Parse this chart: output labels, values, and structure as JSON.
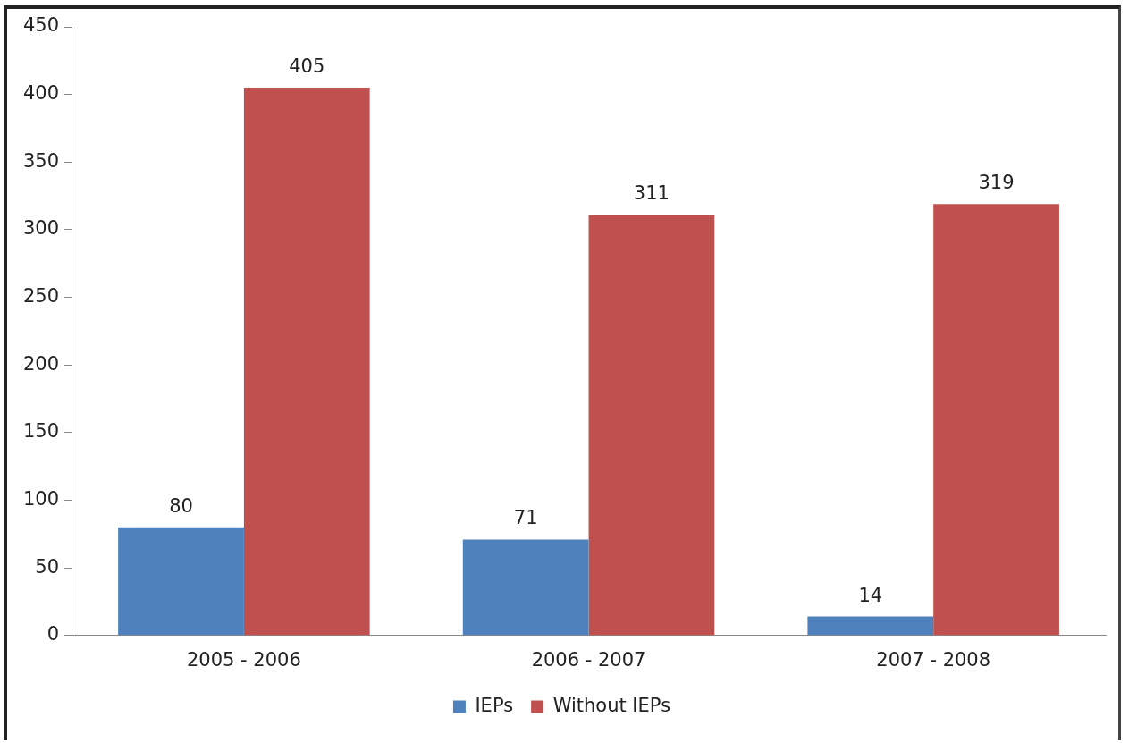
{
  "chart_data": {
    "type": "bar",
    "categories": [
      "2005 - 2006",
      "2006 - 2007",
      "2007 - 2008"
    ],
    "series": [
      {
        "name": "IEPs",
        "color": "#4f81bd",
        "values": [
          80,
          71,
          14
        ]
      },
      {
        "name": "Without IEPs",
        "color": "#c0504d",
        "values": [
          405,
          311,
          319
        ]
      }
    ],
    "ylim": [
      0,
      450
    ],
    "yticks": [
      0,
      50,
      100,
      150,
      200,
      250,
      300,
      350,
      400,
      450
    ],
    "grid": false,
    "legend": "bottom",
    "data_labels": true
  }
}
